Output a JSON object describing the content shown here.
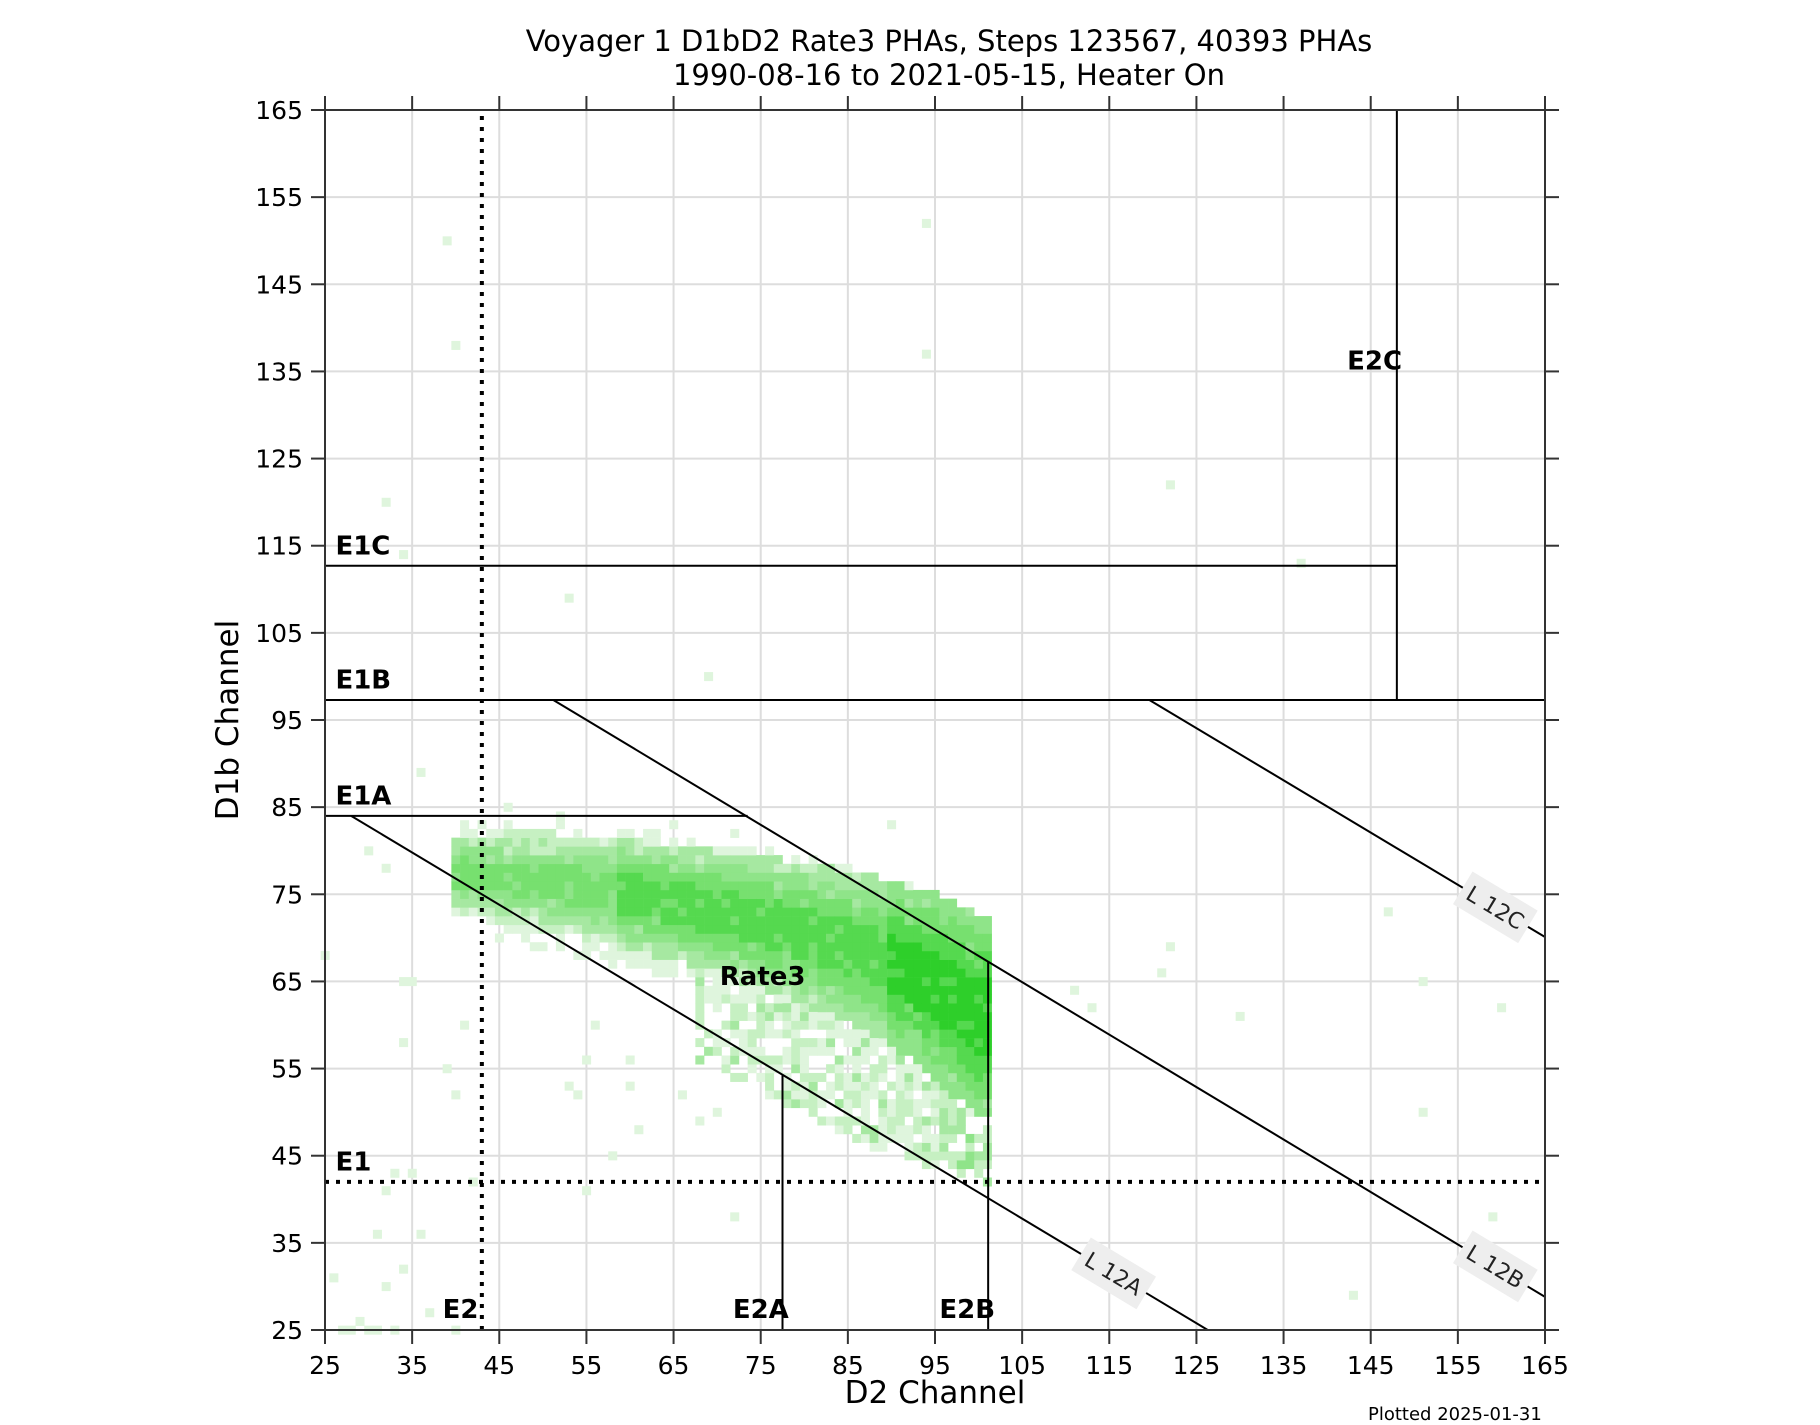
{
  "chart_data": {
    "type": "heatmap",
    "title": "Voyager 1 D1bD2 Rate3 PHAs, Steps 123567, 40393 PHAs",
    "subtitle": "1990-08-16 to 2021-05-15, Heater On",
    "xlabel": "D2 Channel",
    "ylabel": "D1b Channel",
    "xlim": [
      25,
      165
    ],
    "ylim": [
      25,
      165
    ],
    "xticks": [
      25,
      35,
      45,
      55,
      65,
      75,
      85,
      95,
      105,
      115,
      125,
      135,
      145,
      155,
      165
    ],
    "yticks": [
      25,
      35,
      45,
      55,
      65,
      75,
      85,
      95,
      105,
      115,
      125,
      135,
      145,
      155,
      165
    ],
    "grid": true,
    "footnote": "Plotted 2025-01-31",
    "colorscale": [
      "#dff5dd",
      "#c6f0c2",
      "#a6e8a1",
      "#8fe489",
      "#77e06f",
      "#55d94f",
      "#2ecf2a"
    ],
    "thresholds": {
      "E1": {
        "value": 42,
        "axis": "y",
        "style": "dotted"
      },
      "E2": {
        "value": 43,
        "axis": "x",
        "style": "dotted"
      },
      "E1A": {
        "value": 84,
        "axis": "y",
        "x_range": [
          25,
          73.5
        ]
      },
      "E1B": {
        "value": 97.3,
        "axis": "y",
        "x_range": [
          25,
          165
        ]
      },
      "E1C": {
        "value": 112.7,
        "axis": "y",
        "x_range": [
          25,
          148
        ]
      },
      "E2A": {
        "value": 77.5,
        "axis": "x",
        "y_range": [
          25,
          54.2
        ]
      },
      "E2B": {
        "value": 101.1,
        "axis": "x",
        "y_range": [
          25,
          67.3
        ]
      },
      "E2C": {
        "value": 148,
        "axis": "x",
        "y_range": [
          97.3,
          165
        ]
      }
    },
    "lines": [
      {
        "name": "L 12A",
        "from": [
          28,
          84
        ],
        "to": [
          126.3,
          25
        ],
        "label_at": [
          115.5,
          31.5
        ]
      },
      {
        "name": "L 12B",
        "from": [
          51.2,
          97.3
        ],
        "to": [
          165,
          28.8
        ],
        "label_at": [
          159.3,
          32.3
        ]
      },
      {
        "name": "L 12C",
        "from": [
          119.6,
          97.3
        ],
        "to": [
          165,
          70.1
        ],
        "label_at": [
          159.3,
          73.5
        ]
      }
    ],
    "region_labels": [
      {
        "text": "E1",
        "x": 26.2,
        "y": 43.3
      },
      {
        "text": "E2",
        "x": 38.5,
        "y": 26.4
      },
      {
        "text": "E1A",
        "x": 26.2,
        "y": 85.3
      },
      {
        "text": "E1B",
        "x": 26.2,
        "y": 98.6
      },
      {
        "text": "E1C",
        "x": 26.2,
        "y": 114.0
      },
      {
        "text": "E2A",
        "x": 71.8,
        "y": 26.4
      },
      {
        "text": "E2B",
        "x": 95.5,
        "y": 26.4
      },
      {
        "text": "E2C",
        "x": 142.3,
        "y": 135.2
      },
      {
        "text": "Rate3",
        "x": 70.3,
        "y": 64.6
      }
    ],
    "main_band": {
      "description": "dense Rate3 PHA band",
      "center": [
        [
          40,
          77.5
        ],
        [
          50,
          76.5
        ],
        [
          60,
          75
        ],
        [
          70,
          73
        ],
        [
          80,
          70.5
        ],
        [
          88,
          68
        ],
        [
          95,
          64.5
        ],
        [
          100,
          61
        ]
      ],
      "half_width": [
        [
          40,
          3
        ],
        [
          50,
          4
        ],
        [
          60,
          4.5
        ],
        [
          70,
          5
        ],
        [
          80,
          6
        ],
        [
          90,
          7
        ],
        [
          100,
          9
        ]
      ],
      "peak_level": [
        [
          40,
          4
        ],
        [
          55,
          4
        ],
        [
          62,
          5
        ],
        [
          85,
          5
        ],
        [
          95,
          6
        ],
        [
          101,
          6
        ]
      ],
      "x_range": [
        40,
        101
      ],
      "lower_tail": {
        "x_range": [
          68,
          101
        ],
        "y_bottom_at_x": [
          [
            68,
            56
          ],
          [
            80,
            50
          ],
          [
            90,
            45
          ],
          [
            101,
            42
          ]
        ]
      }
    },
    "outliers": [
      [
        39,
        150
      ],
      [
        40,
        138
      ],
      [
        94,
        152
      ],
      [
        94,
        137
      ],
      [
        32,
        120
      ],
      [
        34,
        114
      ],
      [
        53,
        109
      ],
      [
        69,
        100
      ],
      [
        122,
        122
      ],
      [
        137,
        113
      ],
      [
        36,
        89
      ],
      [
        30,
        80
      ],
      [
        32,
        78
      ],
      [
        35,
        65
      ],
      [
        34,
        65
      ],
      [
        41,
        60
      ],
      [
        34,
        58
      ],
      [
        39,
        55
      ],
      [
        40,
        52
      ],
      [
        46,
        85
      ],
      [
        52,
        84
      ],
      [
        65,
        83
      ],
      [
        90,
        83
      ],
      [
        72,
        82
      ],
      [
        56,
        60
      ],
      [
        55,
        56
      ],
      [
        60,
        56
      ],
      [
        53,
        53
      ],
      [
        54,
        52
      ],
      [
        60,
        53
      ],
      [
        66,
        52
      ],
      [
        68,
        49
      ],
      [
        70,
        50
      ],
      [
        61,
        48
      ],
      [
        58,
        45
      ],
      [
        55,
        41
      ],
      [
        72,
        38
      ],
      [
        122,
        69
      ],
      [
        121,
        66
      ],
      [
        111,
        64
      ],
      [
        113,
        62
      ],
      [
        130,
        61
      ],
      [
        147,
        73
      ],
      [
        151,
        65
      ],
      [
        160,
        62
      ],
      [
        151,
        50
      ],
      [
        159,
        38
      ],
      [
        143,
        29
      ],
      [
        25,
        68
      ],
      [
        33,
        43
      ],
      [
        35,
        43
      ],
      [
        32,
        41
      ],
      [
        42,
        42
      ],
      [
        31,
        36
      ],
      [
        36,
        36
      ],
      [
        34,
        32
      ],
      [
        26,
        31
      ],
      [
        32,
        30
      ],
      [
        37,
        27
      ],
      [
        29,
        26
      ],
      [
        27,
        25
      ],
      [
        28,
        25
      ],
      [
        30,
        25
      ],
      [
        31,
        25
      ],
      [
        33,
        25
      ],
      [
        40,
        25
      ]
    ]
  }
}
